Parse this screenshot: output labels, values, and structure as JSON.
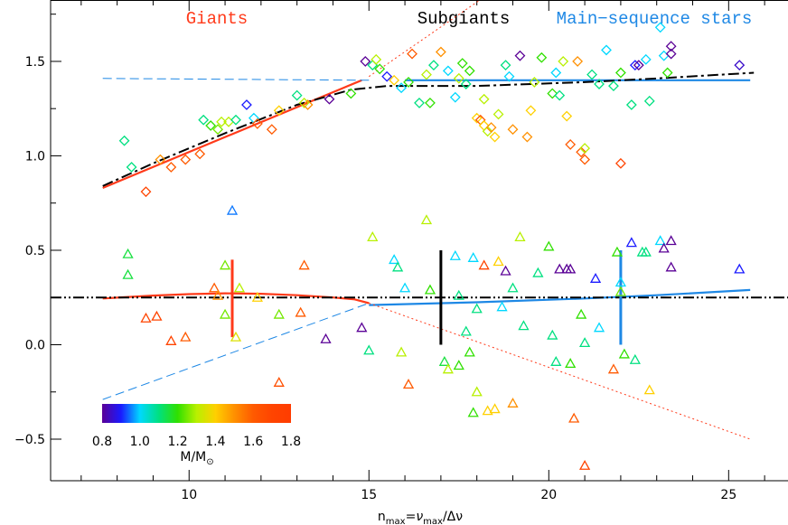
{
  "chart_data": {
    "type": "scatter",
    "xlim": [
      6.15,
      26.65
    ],
    "ylim": [
      -0.72,
      1.825
    ],
    "xticks": [
      10,
      15,
      20,
      25
    ],
    "yticks": [
      {
        "value": -0.5,
        "label": "−0.5"
      },
      {
        "value": 0,
        "label": "0.0"
      },
      0.5,
      {
        "value": 1,
        "label": "1.0"
      },
      1.5
    ],
    "xminorticks": [
      7,
      8,
      9,
      11,
      12,
      13,
      14,
      16,
      17,
      18,
      19,
      21,
      22,
      23,
      24,
      26
    ],
    "yminorticks": [
      -0.25,
      0.25,
      0.75,
      1.25,
      1.75
    ],
    "x_label_parts": [
      "n",
      "max",
      "=",
      "ν",
      "max",
      "/Δν"
    ],
    "annotations": [
      {
        "text": "Giants",
        "color": "#ff3a1a"
      },
      {
        "text": "Subgiants",
        "color": "#000000"
      },
      {
        "text": "Main−sequence stars",
        "color": "#1e88e5"
      }
    ],
    "colorbar": {
      "range": [
        0.8,
        1.8
      ],
      "colors": [
        "#5a0096",
        "#1a1aff",
        "#00d8ff",
        "#00e080",
        "#30e000",
        "#b8f000",
        "#ffd000",
        "#ff9000",
        "#ff5a00",
        "#ff4400",
        "#ff3c00"
      ],
      "ticks": [
        0.8,
        {
          "value": 1,
          "label": "1.0"
        },
        1.2,
        1.4,
        1.6,
        1.8
      ],
      "label_parts": [
        "M/M",
        "⊙"
      ]
    },
    "diamonds": {
      "x": [
        8.2,
        8.4,
        8.8,
        9.2,
        9.5,
        9.9,
        10.3,
        10.4,
        10.6,
        10.8,
        10.9,
        11.1,
        11.3,
        11.8,
        11.9,
        11.6,
        12.3,
        12.5,
        13.0,
        13.2,
        13.3,
        13.9,
        14.5,
        14.9,
        15.1,
        15.2,
        15.3,
        15.5,
        15.7,
        15.9,
        16.1,
        16.2,
        16.4,
        16.6,
        16.7,
        16.8,
        17.0,
        17.2,
        17.4,
        17.5,
        17.6,
        17.7,
        17.8,
        18.0,
        18.1,
        18.2,
        18.2,
        18.3,
        18.4,
        18.5,
        18.6,
        18.8,
        18.9,
        19.0,
        19.2,
        19.4,
        19.5,
        19.6,
        19.8,
        20.1,
        20.2,
        20.3,
        20.4,
        20.5,
        20.6,
        20.8,
        20.9,
        21.0,
        21.0,
        21.2,
        21.4,
        21.6,
        21.8,
        22.0,
        22.0,
        22.3,
        22.4,
        22.5,
        22.7,
        22.8,
        23.1,
        23.2,
        23.3,
        23.4,
        23.4,
        25.3
      ],
      "y": [
        1.08,
        0.94,
        0.81,
        0.98,
        0.94,
        0.98,
        1.01,
        1.19,
        1.16,
        1.14,
        1.18,
        1.18,
        1.19,
        1.2,
        1.17,
        1.27,
        1.14,
        1.24,
        1.32,
        1.28,
        1.27,
        1.3,
        1.33,
        1.5,
        1.48,
        1.51,
        1.46,
        1.42,
        1.4,
        1.36,
        1.39,
        1.54,
        1.28,
        1.43,
        1.28,
        1.48,
        1.55,
        1.45,
        1.31,
        1.41,
        1.49,
        1.38,
        1.45,
        1.2,
        1.19,
        1.3,
        1.16,
        1.13,
        1.15,
        1.1,
        1.22,
        1.48,
        1.42,
        1.14,
        1.53,
        1.1,
        1.24,
        1.39,
        1.52,
        1.33,
        1.44,
        1.32,
        1.5,
        1.21,
        1.06,
        1.5,
        1.02,
        0.98,
        1.04,
        1.43,
        1.38,
        1.56,
        1.37,
        0.96,
        1.44,
        1.27,
        1.48,
        1.48,
        1.51,
        1.29,
        1.68,
        1.53,
        1.44,
        1.54,
        1.58,
        1.48
      ],
      "mass": [
        1.1,
        1.1,
        1.7,
        1.5,
        1.6,
        1.6,
        1.6,
        1.1,
        1.2,
        1.25,
        1.3,
        1.3,
        1.1,
        1.0,
        1.6,
        0.9,
        1.6,
        1.4,
        1.1,
        1.3,
        1.5,
        0.8,
        1.2,
        0.8,
        1.1,
        1.3,
        1.2,
        0.9,
        1.4,
        1.0,
        1.2,
        1.6,
        1.1,
        1.3,
        1.2,
        1.1,
        1.5,
        1.0,
        1.0,
        1.3,
        1.2,
        1.1,
        1.2,
        1.4,
        1.6,
        1.3,
        1.4,
        1.3,
        1.5,
        1.4,
        1.3,
        1.1,
        1.0,
        1.5,
        0.8,
        1.5,
        1.4,
        1.3,
        1.2,
        1.2,
        1.0,
        1.1,
        1.3,
        1.4,
        1.6,
        1.5,
        1.6,
        1.6,
        1.3,
        1.1,
        1.1,
        1.0,
        1.1,
        1.7,
        1.2,
        1.1,
        0.9,
        0.8,
        1.0,
        1.1,
        1.0,
        1.0,
        1.2,
        0.8,
        0.8,
        0.85
      ]
    },
    "triangles": {
      "x": [
        8.3,
        8.3,
        8.8,
        9.1,
        9.5,
        9.9,
        10.7,
        10.8,
        11.0,
        11.0,
        11.4,
        11.3,
        11.2,
        11.9,
        12.5,
        12.5,
        13.2,
        13.1,
        13.8,
        14.8,
        15.1,
        15.0,
        15.7,
        15.8,
        16.1,
        16.6,
        16.7,
        17.1,
        17.2,
        17.4,
        17.5,
        17.5,
        17.8,
        17.9,
        17.9,
        18.0,
        18.0,
        18.2,
        18.3,
        18.5,
        18.6,
        18.7,
        18.8,
        19.0,
        19.2,
        19.3,
        19.0,
        19.7,
        20.0,
        20.1,
        20.2,
        20.3,
        20.5,
        20.6,
        20.6,
        20.7,
        20.9,
        21.0,
        21.0,
        21.3,
        21.4,
        21.9,
        22.0,
        22.0,
        21.8,
        22.1,
        22.3,
        22.4,
        22.6,
        22.7,
        22.8,
        23.1,
        23.2,
        23.4,
        23.4,
        25.3,
        16.0,
        17.7,
        15.9
      ],
      "y": [
        0.48,
        0.37,
        0.14,
        0.15,
        0.02,
        0.04,
        0.3,
        0.26,
        0.16,
        0.42,
        0.3,
        0.04,
        0.71,
        0.25,
        0.16,
        -0.2,
        0.42,
        0.17,
        0.03,
        0.09,
        0.57,
        -0.03,
        0.45,
        0.41,
        -0.21,
        0.66,
        0.29,
        -0.09,
        -0.13,
        0.47,
        0.26,
        -0.11,
        -0.04,
        0.46,
        -0.36,
        0.19,
        -0.25,
        0.42,
        -0.35,
        -0.34,
        0.44,
        0.2,
        0.39,
        0.3,
        0.57,
        0.1,
        -0.31,
        0.38,
        0.52,
        0.05,
        -0.09,
        0.4,
        0.4,
        0.4,
        -0.1,
        -0.39,
        0.16,
        0.01,
        -0.64,
        0.35,
        0.09,
        0.49,
        0.33,
        0.28,
        -0.13,
        -0.05,
        0.54,
        -0.08,
        0.49,
        0.49,
        -0.24,
        0.55,
        0.51,
        0.55,
        0.41,
        0.4,
        0.3,
        0.07,
        -0.04
      ],
      "mass": [
        1.15,
        1.15,
        1.7,
        1.7,
        1.7,
        1.6,
        1.6,
        1.5,
        1.25,
        1.25,
        1.3,
        1.35,
        0.95,
        1.4,
        1.25,
        1.65,
        1.6,
        1.6,
        0.8,
        0.8,
        1.3,
        1.1,
        1.0,
        1.1,
        1.6,
        1.3,
        1.2,
        1.15,
        1.3,
        1.0,
        1.1,
        1.2,
        1.2,
        1.0,
        1.2,
        1.1,
        1.3,
        1.7,
        1.4,
        1.4,
        1.4,
        1.0,
        0.8,
        1.1,
        1.3,
        1.1,
        1.5,
        1.1,
        1.2,
        1.1,
        1.1,
        0.8,
        0.8,
        0.8,
        1.2,
        1.6,
        1.2,
        1.1,
        1.7,
        0.9,
        1.0,
        1.2,
        1.0,
        1.25,
        1.6,
        1.2,
        0.9,
        1.1,
        1.1,
        1.1,
        1.4,
        1.0,
        0.8,
        0.8,
        0.8,
        0.9,
        1.0,
        1.1,
        1.3
      ]
    },
    "lines": [
      {
        "style": "solid",
        "color": "#ff3a1a",
        "x": [
          7.6,
          14.8
        ],
        "y": [
          0.83,
          1.4
        ]
      },
      {
        "style": "dashed",
        "color": "#1e88e5",
        "x": [
          7.6,
          15
        ],
        "y": [
          1.41,
          1.4
        ]
      },
      {
        "style": "solid",
        "color": "#1e88e5",
        "x": [
          16,
          25.6
        ],
        "y": [
          1.4,
          1.4
        ]
      },
      {
        "style": "dashdot",
        "color": "#000000",
        "x": [
          7.6,
          9,
          11,
          13,
          14.5,
          15.5,
          18,
          21,
          23,
          25.7
        ],
        "y": [
          0.84,
          0.96,
          1.12,
          1.27,
          1.35,
          1.37,
          1.37,
          1.39,
          1.41,
          1.44
        ]
      },
      {
        "style": "dotted",
        "color": "#ff3a1a",
        "x": [
          15,
          18.2
        ],
        "y": [
          1.42,
          1.84
        ]
      },
      {
        "style": "solid",
        "color": "#ff3a1a",
        "x": [
          7.6,
          9,
          10,
          11,
          12,
          13,
          14,
          14.6,
          15
        ],
        "y": [
          0.245,
          0.26,
          0.268,
          0.272,
          0.27,
          0.262,
          0.25,
          0.24,
          0.22
        ]
      },
      {
        "style": "dashed",
        "color": "#1e88e5",
        "x": [
          7.6,
          15
        ],
        "y": [
          -0.29,
          0.22
        ]
      },
      {
        "style": "solid",
        "color": "#1e88e5",
        "x": [
          15,
          18,
          21,
          23,
          25.6
        ],
        "y": [
          0.21,
          0.225,
          0.245,
          0.262,
          0.29
        ]
      },
      {
        "style": "dotted",
        "color": "#ff3a1a",
        "x": [
          15,
          25.6
        ],
        "y": [
          0.22,
          -0.5
        ]
      },
      {
        "style": "dashdotdot",
        "color": "#000000",
        "x": [
          6.15,
          26.65
        ],
        "y": [
          0.25,
          0.25
        ]
      }
    ],
    "errorbars": [
      {
        "color": "#ff3a1a",
        "x": 11.2,
        "y": [
          0.04,
          0.45
        ]
      },
      {
        "color": "#000000",
        "x": 17,
        "y": [
          0.0,
          0.5
        ]
      },
      {
        "color": "#1e88e5",
        "x": 22,
        "y": [
          0.0,
          0.5
        ]
      }
    ]
  }
}
